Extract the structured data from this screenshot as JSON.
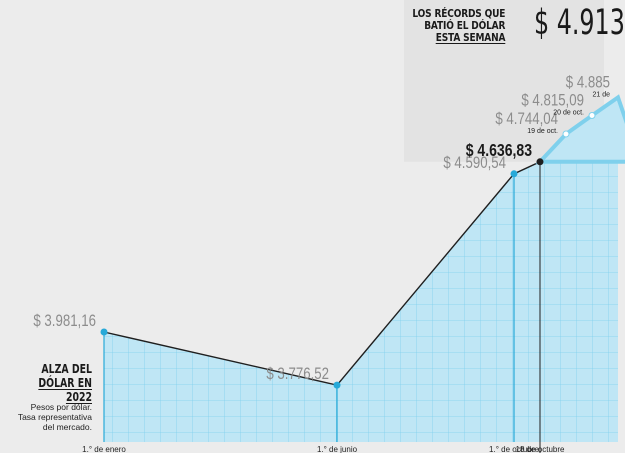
{
  "header": {
    "line1": "LOS RÉCORDS QUE",
    "line2": "BATIÓ EL DÓLAR",
    "line3": "ESTA SEMANA",
    "big_value": "$ 4.913"
  },
  "side": {
    "title_line1": "ALZA DEL",
    "title_line2": "DÓLAR EN 2022",
    "note_line1": "Pesos por dólar.",
    "note_line2": "Tasa representativa",
    "note_line3": "del mercado."
  },
  "colors": {
    "background": "#ececec",
    "highlight_panel": "#e3e3e3",
    "area_fill": "#bfe6f5",
    "grid": "#7fd0ec",
    "line": "#1f1f1f",
    "point": "#27a9d8",
    "label": "#8c8c8c",
    "label_emphasis": "#1a1a1a"
  },
  "chart_data": {
    "type": "area",
    "title": "ALZA DEL DÓLAR EN 2022",
    "ylabel": "Pesos por dólar. Tasa representativa del mercado.",
    "points": [
      {
        "date": "2022-01-01",
        "value": 3981.16,
        "label": "$ 3.981,16",
        "tick": "1.° de enero",
        "style": "major"
      },
      {
        "date": "2022-06-01",
        "value": 3776.52,
        "label": "$ 3.776,52",
        "tick": "1.° de junio",
        "style": "major"
      },
      {
        "date": "2022-10-01",
        "value": 4590.54,
        "label": "$ 4.590,54",
        "tick": "1.° de octubre",
        "style": "major"
      },
      {
        "date": "2022-10-18",
        "value": 4636.83,
        "label": "$ 4.636,83",
        "tick": "18 de octubre",
        "style": "emphasis"
      },
      {
        "date": "2022-10-19",
        "value": 4744.04,
        "label": "$ 4.744,04",
        "sublabel": "19 de oct.",
        "style": "minor"
      },
      {
        "date": "2022-10-20",
        "value": 4815.09,
        "label": "$ 4.815,09",
        "sublabel": "20 de oct.",
        "style": "minor"
      },
      {
        "date": "2022-10-21",
        "value": 4885,
        "label": "$ 4.885",
        "sublabel": "21 de",
        "style": "minor"
      }
    ]
  }
}
